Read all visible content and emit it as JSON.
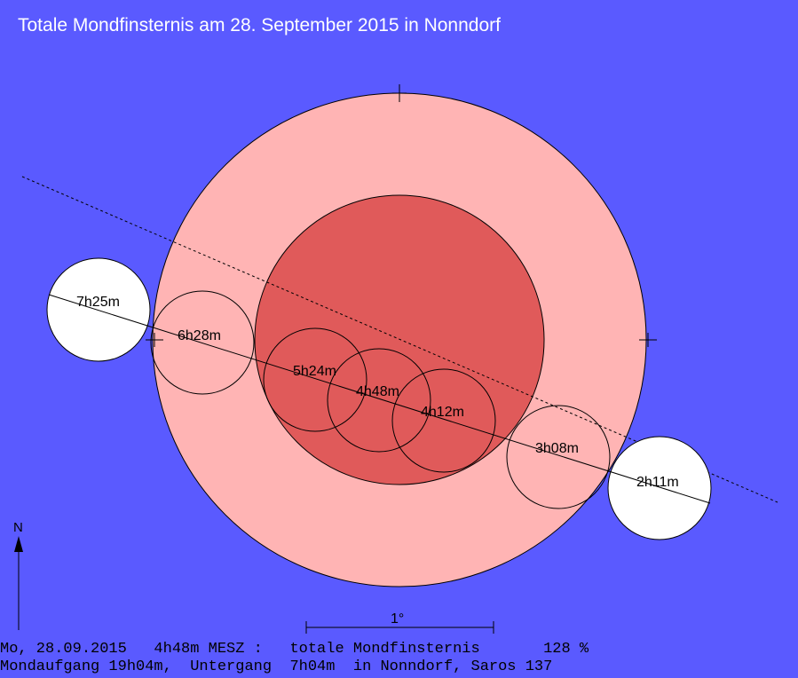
{
  "title": "Totale Mondfinsternis am 28. September 2015 in Nonndorf",
  "north_label": "N",
  "scale_label": "1°",
  "footer": {
    "line1": "Mo, 28.09.2015   4h48m MESZ :   totale Mondfinsternis       128 %",
    "line2": "Mondaufgang 19h04m,  Untergang  7h04m  in Nonndorf, Saros 137"
  },
  "moon_positions": [
    {
      "label": "2h11m",
      "state": "outside"
    },
    {
      "label": "3h08m",
      "state": "penumbra"
    },
    {
      "label": "4h12m",
      "state": "umbra"
    },
    {
      "label": "4h48m",
      "state": "umbra"
    },
    {
      "label": "5h24m",
      "state": "umbra"
    },
    {
      "label": "6h28m",
      "state": "penumbra"
    },
    {
      "label": "7h25m",
      "state": "outside"
    }
  ],
  "colors": {
    "background": "#5a5aff",
    "penumbra": "#ffb4b4",
    "umbra": "#e05a5a",
    "moon_outside": "#ffffff"
  }
}
